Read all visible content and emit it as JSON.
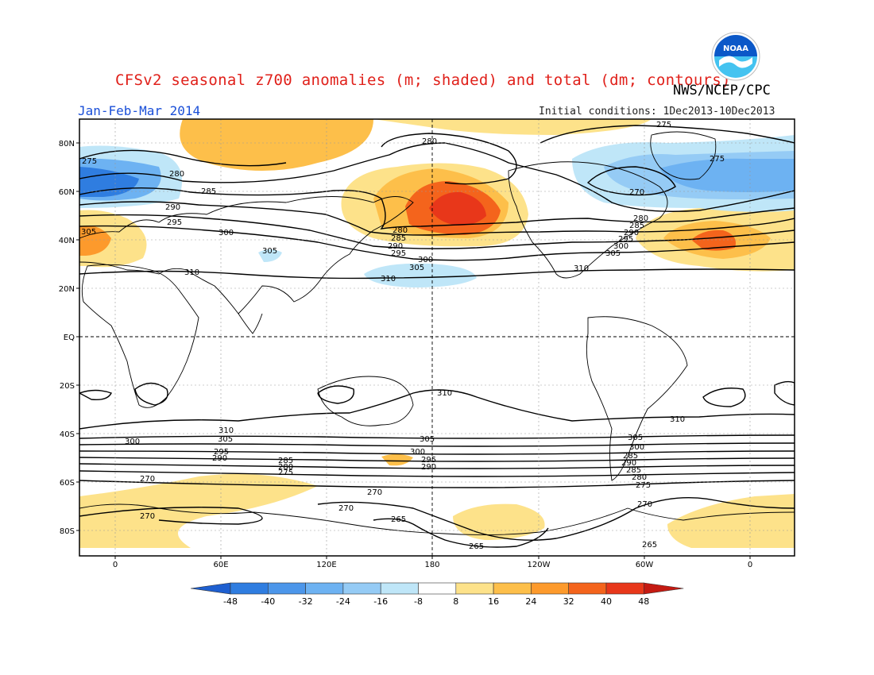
{
  "title": "CFSv2 seasonal z700 anomalies (m; shaded) and total (dm; contours)",
  "organization": "NWS/NCEP/CPC",
  "period": "Jan-Feb-Mar 2014",
  "initial_conditions": "Initial conditions: 1Dec2013-10Dec2013",
  "logo_text": "NOAA",
  "logo_icon": "noaa-logo-icon",
  "lat_labels": [
    "80N",
    "60N",
    "40N",
    "20N",
    "EQ",
    "20S",
    "40S",
    "60S",
    "80S"
  ],
  "lon_labels": [
    "0",
    "60E",
    "120E",
    "180",
    "120W",
    "60W",
    "0"
  ],
  "colorbar": {
    "labels": [
      "-48",
      "-40",
      "-32",
      "-24",
      "-16",
      "-8",
      "8",
      "16",
      "24",
      "32",
      "40",
      "48"
    ],
    "colors": [
      "#1e5fd0",
      "#2f7de0",
      "#4c96ea",
      "#6db2f2",
      "#95cbf5",
      "#bfe6f8",
      "#ffffff",
      "#fde28a",
      "#fdbf4a",
      "#fd9a2c",
      "#f4641c",
      "#e8371a",
      "#c41a12"
    ]
  },
  "contour_labels": {
    "nh": [
      "275",
      "280",
      "285",
      "290",
      "295",
      "300",
      "305",
      "310",
      "270",
      "265"
    ],
    "sh": [
      "310",
      "305",
      "300",
      "295",
      "290",
      "285",
      "280",
      "275",
      "270",
      "265"
    ]
  }
}
